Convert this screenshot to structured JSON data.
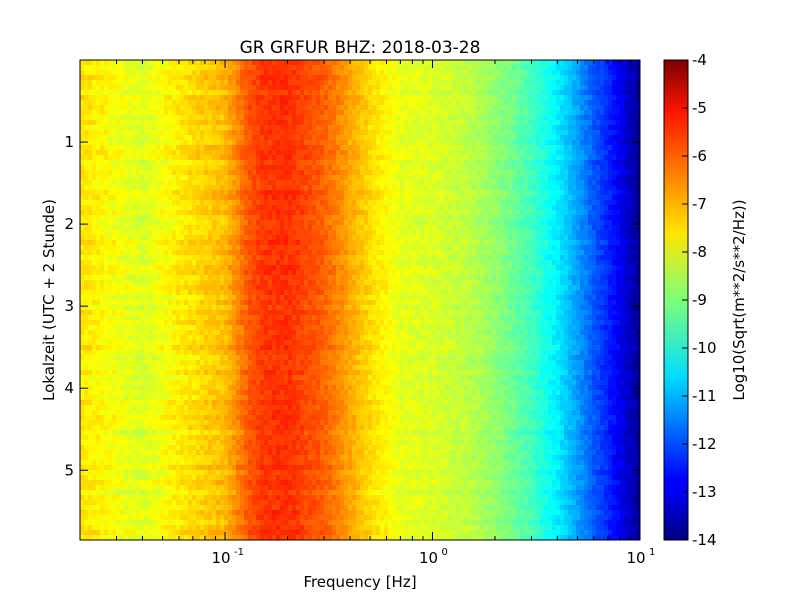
{
  "chart_data": {
    "type": "heatmap",
    "title": "GR GRFUR BHZ: 2018-03-28",
    "xlabel": "Frequency [Hz]",
    "ylabel": "Lokalzeit (UTC + 2 Stunde)",
    "xscale": "log",
    "xlim": [
      0.02,
      10
    ],
    "ylim": [
      5.85,
      0
    ],
    "x_ticks": [
      {
        "value": 0.1,
        "base": "10",
        "exp": "-1"
      },
      {
        "value": 1,
        "base": "10",
        "exp": "0"
      },
      {
        "value": 10,
        "base": "10",
        "exp": "1"
      }
    ],
    "y_ticks": [
      {
        "value": 1,
        "label": "1"
      },
      {
        "value": 2,
        "label": "2"
      },
      {
        "value": 3,
        "label": "3"
      },
      {
        "value": 4,
        "label": "4"
      },
      {
        "value": 5,
        "label": "5"
      }
    ],
    "colormap": "jet",
    "colorbar": {
      "label": "Log10(Sqrt(m**2/s**2/Hz))",
      "min": -14,
      "max": -4,
      "ticks": [
        "-4",
        "-5",
        "-6",
        "-7",
        "-8",
        "-9",
        "-10",
        "-11",
        "-12",
        "-13",
        "-14"
      ]
    },
    "profile": {
      "frequency": [
        0.02,
        0.04,
        0.06,
        0.08,
        0.1,
        0.13,
        0.15,
        0.2,
        0.3,
        0.5,
        0.7,
        1.0,
        1.5,
        2.0,
        3.0,
        4.0,
        5.0,
        6.0,
        7.0,
        8.0,
        9.0,
        10.0
      ],
      "level": [
        -7.5,
        -8.1,
        -7.6,
        -7.3,
        -7.1,
        -6.1,
        -5.8,
        -5.7,
        -6.2,
        -7.4,
        -8.0,
        -8.1,
        -8.4,
        -8.8,
        -9.6,
        -10.4,
        -11.2,
        -11.9,
        -12.4,
        -12.9,
        -13.4,
        -13.8
      ]
    }
  }
}
